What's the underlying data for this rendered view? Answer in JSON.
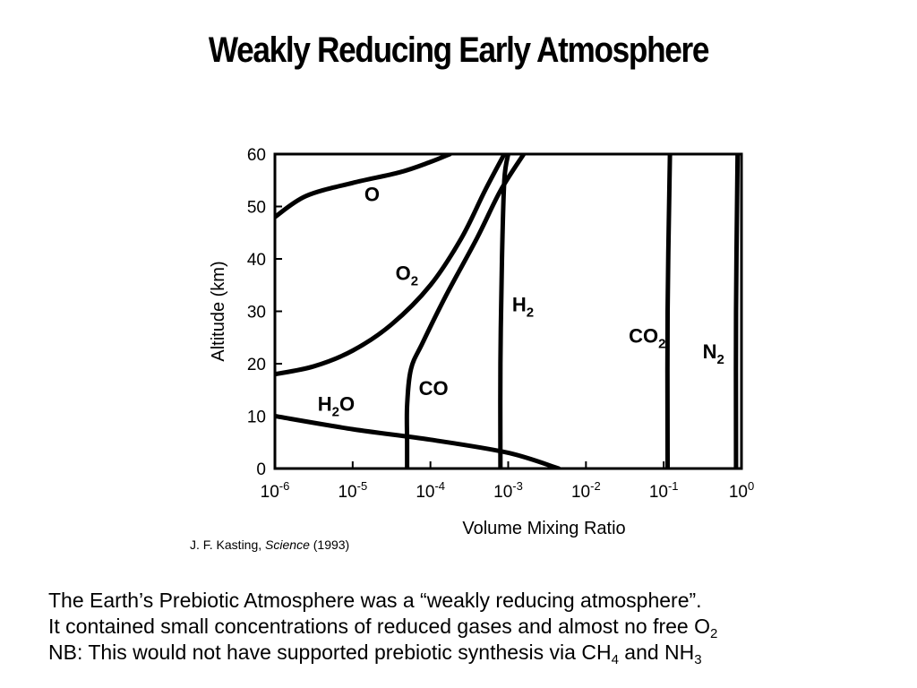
{
  "title": "Weakly Reducing Early Atmosphere",
  "citation": {
    "author": "J. F. Kasting, ",
    "journal": "Science",
    "year": " (1993)"
  },
  "body": {
    "line1": "The Earth’s Prebiotic Atmosphere was a “weakly reducing atmosphere”.",
    "line2_text": "It contained small concentrations of reduced gases and almost no free O",
    "line2_sub": "2",
    "line3_text": "NB:  This would not have supported prebiotic synthesis via CH",
    "line3_sub1": "4",
    "line3_mid": " and NH",
    "line3_sub2": "3"
  },
  "chart_data": {
    "type": "line",
    "xlabel": "Volume Mixing Ratio",
    "ylabel": "Altitude (km)",
    "x_scale": "log",
    "xlim_log10": [
      -6,
      0
    ],
    "ylim": [
      0,
      60
    ],
    "x_ticks": [
      {
        "base": "10",
        "exp": "-6",
        "log10": -6
      },
      {
        "base": "10",
        "exp": "-5",
        "log10": -5
      },
      {
        "base": "10",
        "exp": "-4",
        "log10": -4
      },
      {
        "base": "10",
        "exp": "-3",
        "log10": -3
      },
      {
        "base": "10",
        "exp": "-2",
        "log10": -2
      },
      {
        "base": "10",
        "exp": "-1",
        "log10": -1
      },
      {
        "base": "10",
        "exp": "0",
        "log10": 0
      }
    ],
    "y_ticks": [
      "0",
      "10",
      "20",
      "30",
      "40",
      "50",
      "60"
    ],
    "grid": false,
    "legend": "none",
    "series": [
      {
        "name": "O",
        "base": "O",
        "sub": "",
        "points": [
          [
            -6,
            48
          ],
          [
            -5.6,
            52
          ],
          [
            -5.0,
            54.5
          ],
          [
            -4.4,
            56.5
          ],
          [
            -4.0,
            58.5
          ],
          [
            -3.75,
            60
          ]
        ],
        "label_at": [
          -4.85,
          51
        ]
      },
      {
        "name": "O2",
        "base": "O",
        "sub": "2",
        "points": [
          [
            -6,
            18
          ],
          [
            -5.5,
            19.5
          ],
          [
            -5.0,
            22.5
          ],
          [
            -4.5,
            27.5
          ],
          [
            -4.0,
            35
          ],
          [
            -3.6,
            44
          ],
          [
            -3.3,
            53
          ],
          [
            -3.05,
            60
          ]
        ],
        "label_at": [
          -4.45,
          36
        ]
      },
      {
        "name": "H2",
        "base": "H",
        "sub": "2",
        "points": [
          [
            -3.1,
            0
          ],
          [
            -3.1,
            20
          ],
          [
            -3.08,
            40
          ],
          [
            -3.05,
            55
          ],
          [
            -3.0,
            60
          ]
        ],
        "label_at": [
          -2.95,
          30
        ]
      },
      {
        "name": "CO",
        "base": "CO",
        "sub": "",
        "points": [
          [
            -4.3,
            0
          ],
          [
            -4.3,
            5
          ],
          [
            -4.3,
            12
          ],
          [
            -4.25,
            19
          ],
          [
            -4.1,
            24
          ],
          [
            -3.8,
            33
          ],
          [
            -3.4,
            44
          ],
          [
            -3.1,
            53
          ],
          [
            -2.8,
            60
          ]
        ],
        "label_at": [
          -4.15,
          14
        ]
      },
      {
        "name": "H2O",
        "base": "H",
        "sub": "2O",
        "points": [
          [
            -6,
            10
          ],
          [
            -5.0,
            7.5
          ],
          [
            -4.0,
            5.5
          ],
          [
            -3.0,
            3
          ],
          [
            -2.35,
            0
          ]
        ],
        "label_at": [
          -5.45,
          11
        ]
      },
      {
        "name": "CO2",
        "base": "CO",
        "sub": "2",
        "points": [
          [
            -0.95,
            0
          ],
          [
            -0.95,
            30
          ],
          [
            -0.92,
            60
          ]
        ],
        "label_at": [
          -1.45,
          24
        ]
      },
      {
        "name": "N2",
        "base": "N",
        "sub": "2",
        "points": [
          [
            -0.07,
            0
          ],
          [
            -0.07,
            30
          ],
          [
            -0.05,
            60
          ]
        ],
        "label_at": [
          -0.5,
          21
        ]
      }
    ]
  },
  "colors": {
    "line": "#000000",
    "background": "#ffffff"
  }
}
